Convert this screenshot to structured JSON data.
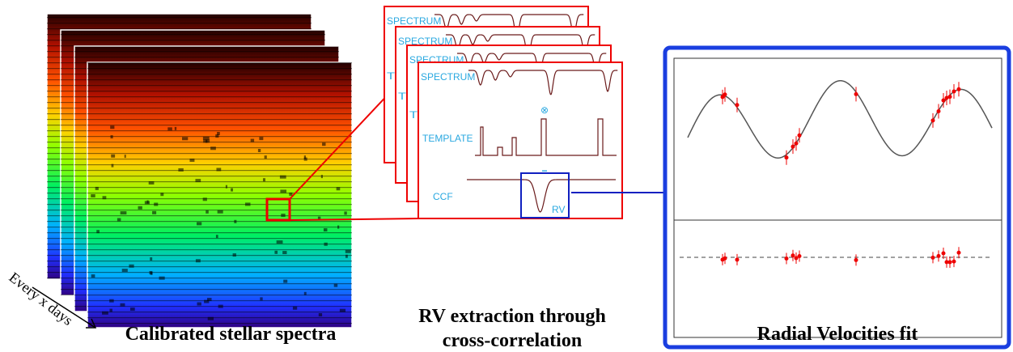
{
  "spectra": {
    "caption": "Calibrated stellar spectra",
    "time_label": "Every x days"
  },
  "ccf_panel": {
    "spectrum_label": "SPECTRUM",
    "template_label": "TEMPLATE",
    "ccf_label": "CCF",
    "rv_label": "RV",
    "multiply_symbol": "⊗",
    "equals_symbol": "=",
    "caption_lines": [
      "RV extraction through",
      "cross-correlation"
    ]
  },
  "rv_panel": {
    "caption": "Radial Velocities fit"
  }
}
